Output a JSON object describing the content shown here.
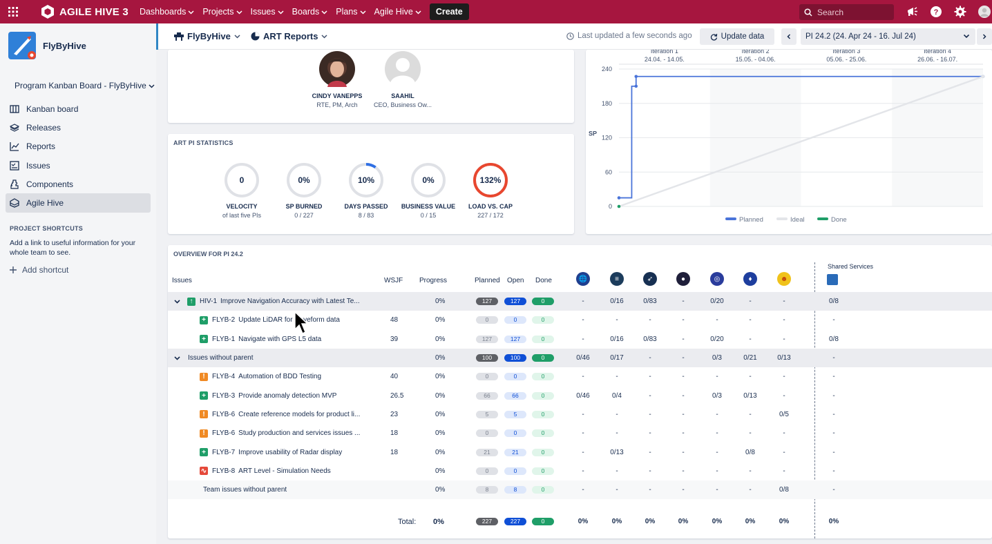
{
  "topbar": {
    "brand": "AGILE HIVE 3",
    "nav": [
      "Dashboards",
      "Projects",
      "Issues",
      "Boards",
      "Plans",
      "Agile Hive"
    ],
    "create": "Create",
    "search_placeholder": "Search",
    "bg": "#a6163f"
  },
  "sidebar": {
    "project": "FlyByHive",
    "board": "Program Kanban Board - FlyByHive",
    "items": [
      {
        "label": "Kanban board",
        "icon": "kanban-icon"
      },
      {
        "label": "Releases",
        "icon": "releases-icon"
      },
      {
        "label": "Reports",
        "icon": "reports-icon"
      },
      {
        "label": "Issues",
        "icon": "issues-icon"
      },
      {
        "label": "Components",
        "icon": "components-icon"
      },
      {
        "label": "Agile Hive",
        "icon": "agile-hive-icon",
        "active": true
      }
    ],
    "shortcuts_heading": "PROJECT SHORTCUTS",
    "shortcuts_text": "Add a link to useful information for your whole team to see.",
    "add_shortcut": "Add shortcut"
  },
  "subbar": {
    "project": "FlyByHive",
    "report": "ART Reports",
    "last_updated": "Last updated a few seconds ago",
    "update": "Update data",
    "pi": "PI 24.2 (24. Apr 24 - 16. Jul 24)"
  },
  "members": [
    {
      "name": "CINDY VANEPPS",
      "role": "RTE, PM, Arch"
    },
    {
      "name": "SAAHIL",
      "role": "CEO, Business Ow..."
    }
  ],
  "stats": {
    "title": "ART PI STATISTICS",
    "items": [
      {
        "value": "0",
        "label": "VELOCITY",
        "sub": "of last five PIs",
        "pct": 0,
        "color": "#dfe1e6"
      },
      {
        "value": "0%",
        "label": "SP BURNED",
        "sub": "0 / 227",
        "pct": 0,
        "color": "#dfe1e6"
      },
      {
        "value": "10%",
        "label": "DAYS PASSED",
        "sub": "8 / 83",
        "pct": 0.1,
        "color": "#2f6fe4"
      },
      {
        "value": "0%",
        "label": "BUSINESS VALUE",
        "sub": "0 / 15",
        "pct": 0,
        "color": "#dfe1e6"
      },
      {
        "value": "132%",
        "label": "LOAD VS. CAP",
        "sub": "227 / 172",
        "pct": 1,
        "color": "#e8472f"
      }
    ]
  },
  "chart_data": {
    "type": "line",
    "iterations": [
      {
        "name": "Iteration 1",
        "dates": "24.04. - 14.05."
      },
      {
        "name": "Iteration 2",
        "dates": "15.05. - 04.06."
      },
      {
        "name": "Iteration 3",
        "dates": "05.06. - 25.06."
      },
      {
        "name": "Iteration 4",
        "dates": "26.06. - 16.07."
      }
    ],
    "ylabel": "SP",
    "yticks": [
      0,
      60,
      120,
      180,
      240
    ],
    "ylim": [
      0,
      240
    ],
    "series": [
      {
        "name": "Planned",
        "color": "#4a74d9",
        "points": [
          [
            0,
            15
          ],
          [
            0.035,
            15
          ],
          [
            0.035,
            210
          ],
          [
            0.047,
            210
          ],
          [
            0.047,
            227
          ],
          [
            1,
            227
          ]
        ]
      },
      {
        "name": "Ideal",
        "color": "#e3e5e9",
        "points": [
          [
            0,
            0
          ],
          [
            1,
            227
          ]
        ]
      },
      {
        "name": "Done",
        "color": "#1f9e68",
        "points": [
          [
            0,
            0
          ]
        ]
      }
    ]
  },
  "overview": {
    "title": "OVERVIEW FOR PI 24.2",
    "headers": {
      "issues": "Issues",
      "wsjf": "WSJF",
      "progress": "Progress",
      "planned": "Planned",
      "open": "Open",
      "done": "Done",
      "shared": "Shared Services"
    },
    "teams": [
      {
        "icon": "team-globe-icon",
        "color": "#1f3f8f"
      },
      {
        "icon": "team-list-icon",
        "color": "#1c3c5c"
      },
      {
        "icon": "team-rocket-icon",
        "color": "#173052"
      },
      {
        "icon": "team-planet-icon",
        "color": "#1f1f3a"
      },
      {
        "icon": "team-orbit-icon",
        "color": "#2a3c9c"
      },
      {
        "icon": "team-shield-icon",
        "color": "#1e3e9e"
      },
      {
        "icon": "team-bee-icon",
        "color": "#f0c21a"
      }
    ],
    "rows": [
      {
        "level": 0,
        "type": "epic",
        "key": "HIV-1",
        "summary": "Improve Navigation Accuracy with Latest Te...",
        "wsjf": "",
        "progress": "0%",
        "planned": "127",
        "open": "127",
        "done": "0",
        "teams": [
          "-",
          "0/16",
          "0/83",
          "-",
          "0/20",
          "-",
          "-"
        ],
        "shared": "0/8",
        "bg": "grey",
        "strong": true
      },
      {
        "level": 1,
        "type": "story",
        "key": "FLYB-2",
        "summary": "Update LiDAR for waveform data",
        "wsjf": "48",
        "progress": "0%",
        "planned": "0",
        "open": "0",
        "done": "0",
        "teams": [
          "-",
          "-",
          "-",
          "-",
          "-",
          "-",
          "-"
        ],
        "shared": "-"
      },
      {
        "level": 1,
        "type": "story",
        "key": "FLYB-1",
        "summary": "Navigate with GPS L5 data",
        "wsjf": "39",
        "progress": "0%",
        "planned": "127",
        "open": "127",
        "done": "0",
        "teams": [
          "-",
          "0/16",
          "0/83",
          "-",
          "0/20",
          "-",
          "-"
        ],
        "shared": "0/8"
      },
      {
        "level": 0,
        "type": "group",
        "key": "",
        "summary": "Issues without parent",
        "wsjf": "",
        "progress": "0%",
        "planned": "100",
        "open": "100",
        "done": "0",
        "teams": [
          "0/46",
          "0/17",
          "-",
          "-",
          "0/3",
          "0/21",
          "0/13"
        ],
        "shared": "-",
        "bg": "grey",
        "strong": true
      },
      {
        "level": 1,
        "type": "enabler",
        "key": "FLYB-4",
        "summary": "Automation of BDD Testing",
        "wsjf": "40",
        "progress": "0%",
        "planned": "0",
        "open": "0",
        "done": "0",
        "teams": [
          "-",
          "-",
          "-",
          "-",
          "-",
          "-",
          "-"
        ],
        "shared": "-"
      },
      {
        "level": 1,
        "type": "story",
        "key": "FLYB-3",
        "summary": "Provide anomaly detection MVP",
        "wsjf": "26.5",
        "progress": "0%",
        "planned": "66",
        "open": "66",
        "done": "0",
        "teams": [
          "0/46",
          "0/4",
          "-",
          "-",
          "0/3",
          "0/13",
          "-"
        ],
        "shared": "-"
      },
      {
        "level": 1,
        "type": "enabler",
        "key": "FLYB-6",
        "summary": "Create reference models for product li...",
        "wsjf": "23",
        "progress": "0%",
        "planned": "5",
        "open": "5",
        "done": "0",
        "teams": [
          "-",
          "-",
          "-",
          "-",
          "-",
          "-",
          "0/5"
        ],
        "shared": "-"
      },
      {
        "level": 1,
        "type": "enabler",
        "key": "FLYB-6",
        "summary": "Study production and services issues ...",
        "wsjf": "18",
        "progress": "0%",
        "planned": "0",
        "open": "0",
        "done": "0",
        "teams": [
          "-",
          "-",
          "-",
          "-",
          "-",
          "-",
          "-"
        ],
        "shared": "-"
      },
      {
        "level": 1,
        "type": "story",
        "key": "FLYB-7",
        "summary": "Improve usability of Radar display",
        "wsjf": "18",
        "progress": "0%",
        "planned": "21",
        "open": "21",
        "done": "0",
        "teams": [
          "-",
          "0/13",
          "-",
          "-",
          "-",
          "0/8",
          "-"
        ],
        "shared": "-"
      },
      {
        "level": 1,
        "type": "need",
        "key": "FLYB-8",
        "summary": "ART Level - Simulation Needs",
        "wsjf": "",
        "progress": "0%",
        "planned": "0",
        "open": "0",
        "done": "0",
        "teams": [
          "-",
          "-",
          "-",
          "-",
          "-",
          "-",
          "-"
        ],
        "shared": "-"
      },
      {
        "level": 2,
        "type": "team",
        "key": "",
        "summary": "Team issues without parent",
        "wsjf": "",
        "progress": "0%",
        "planned": "8",
        "open": "8",
        "done": "0",
        "teams": [
          "-",
          "-",
          "-",
          "-",
          "-",
          "-",
          "0/8"
        ],
        "shared": "-",
        "bg": "light"
      }
    ],
    "total": {
      "label": "Total:",
      "progress": "0%",
      "planned": "227",
      "open": "227",
      "done": "0",
      "teams": [
        "0%",
        "0%",
        "0%",
        "0%",
        "0%",
        "0%",
        "0%"
      ],
      "shared": "0%"
    }
  }
}
